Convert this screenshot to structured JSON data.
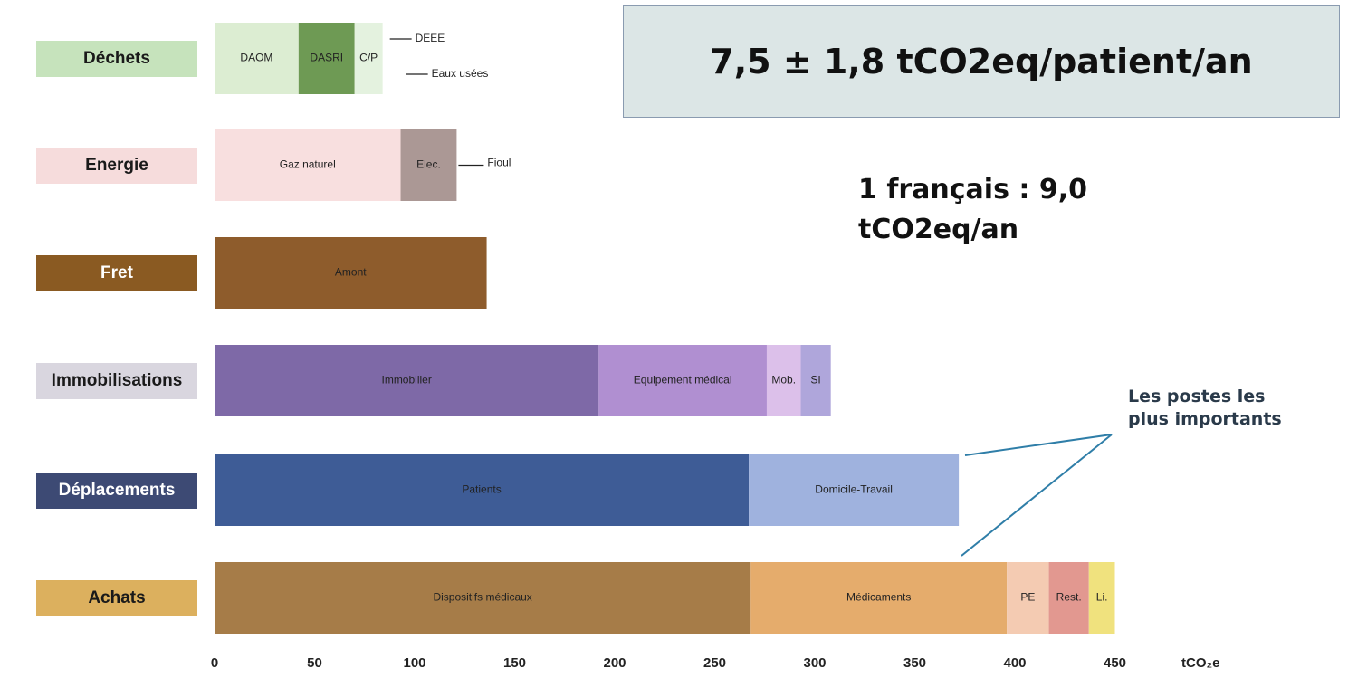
{
  "chart_data": {
    "type": "bar",
    "orientation": "horizontal",
    "stacked": true,
    "xlim": [
      0,
      450
    ],
    "xticks": [
      "0",
      "50",
      "100",
      "150",
      "200",
      "250",
      "300",
      "350",
      "400",
      "450"
    ],
    "unit_label": "tCO₂e",
    "categories": [
      {
        "name": "Déchets",
        "label_bg": "#c6e3bc",
        "label_color": "#1a1a1a",
        "segments": [
          {
            "label": "DAOM",
            "value": 42,
            "color": "#dcedd2"
          },
          {
            "label": "DASRI",
            "value": 28,
            "color": "#6e9a54"
          },
          {
            "label": "C/P",
            "value": 14,
            "color": "#e4f2df"
          }
        ],
        "callouts": [
          "DEEE",
          "Eaux usées"
        ]
      },
      {
        "name": "Energie",
        "label_bg": "#f6dcdc",
        "label_color": "#1a1a1a",
        "segments": [
          {
            "label": "Gaz naturel",
            "value": 93,
            "color": "#f8dfdf"
          },
          {
            "label": "Elec.",
            "value": 28,
            "color": "#ab9895"
          }
        ],
        "callouts": [
          "Fioul"
        ]
      },
      {
        "name": "Fret",
        "label_bg": "#8a5a22",
        "label_color": "#ffffff",
        "segments": [
          {
            "label": "Amont",
            "value": 136,
            "color": "#8e5c2c"
          }
        ],
        "callouts": []
      },
      {
        "name": "Immobilisations",
        "label_bg": "#d9d6df",
        "label_color": "#1a1a1a",
        "segments": [
          {
            "label": "Immobilier",
            "value": 192,
            "color": "#7e69a7"
          },
          {
            "label": "Equipement médical",
            "value": 84,
            "color": "#b08fd1"
          },
          {
            "label": "Mob.",
            "value": 17,
            "color": "#dcc0ea"
          },
          {
            "label": "SI",
            "value": 15,
            "color": "#afa6db"
          }
        ],
        "callouts": []
      },
      {
        "name": "Déplacements",
        "label_bg": "#3d4a74",
        "label_color": "#ffffff",
        "segments": [
          {
            "label": "Patients",
            "value": 267,
            "color": "#3e5c96"
          },
          {
            "label": "Domicile-Travail",
            "value": 105,
            "color": "#9fb2de"
          }
        ],
        "callouts": []
      },
      {
        "name": "Achats",
        "label_bg": "#dcb05e",
        "label_color": "#1a1a1a",
        "segments": [
          {
            "label": "Dispositifs médicaux",
            "value": 268,
            "color": "#a67c48"
          },
          {
            "label": "Médicaments",
            "value": 128,
            "color": "#e5ac6c"
          },
          {
            "label": "PE",
            "value": 21,
            "color": "#f4cbb2"
          },
          {
            "label": "Rest.",
            "value": 20,
            "color": "#e29890"
          },
          {
            "label": "Li.",
            "value": 13,
            "color": "#f0e27e"
          }
        ],
        "callouts": []
      }
    ]
  },
  "headline": "7,5 ± 1,8 tCO2eq/patient/an",
  "reference": [
    "1 français : 9,0",
    "tCO2eq/an"
  ],
  "annotation": [
    "Les postes les",
    "plus importants"
  ],
  "colors": {
    "headline_bg": "#dce6e6",
    "headline_border": "#8a9bb0",
    "annotation_line": "#2f7ea8"
  }
}
